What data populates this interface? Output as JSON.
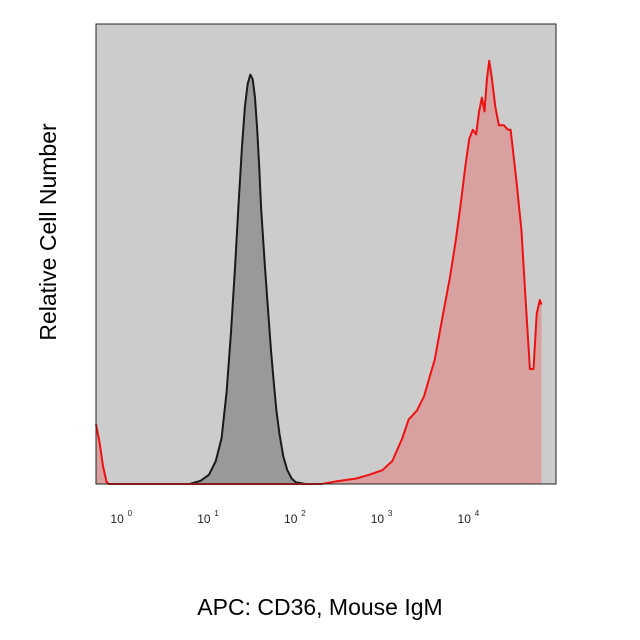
{
  "chart_data": {
    "type": "area",
    "xlabel": "APC: CD36, Mouse IgM",
    "ylabel": "Relative Cell Number",
    "x_scale": "log",
    "xlim": [
      0.5,
      100000
    ],
    "ylim": [
      0,
      100
    ],
    "grid": false,
    "plot_background": "#cccccc",
    "x_ticks": [
      {
        "base": "10",
        "exp": "0",
        "value": 1
      },
      {
        "base": "10",
        "exp": "1",
        "value": 10
      },
      {
        "base": "10",
        "exp": "2",
        "value": 100
      },
      {
        "base": "10",
        "exp": "3",
        "value": 1000
      },
      {
        "base": "10",
        "exp": "4",
        "value": 10000
      }
    ],
    "series": [
      {
        "stroke": "#1a1a1a",
        "fill": "#999999",
        "points": [
          [
            6,
            0
          ],
          [
            8,
            0.7
          ],
          [
            10,
            2
          ],
          [
            12,
            5
          ],
          [
            14,
            10
          ],
          [
            16,
            20
          ],
          [
            18,
            33
          ],
          [
            20,
            47
          ],
          [
            22,
            61
          ],
          [
            24,
            73
          ],
          [
            26,
            82
          ],
          [
            28,
            87
          ],
          [
            30,
            89
          ],
          [
            32,
            88
          ],
          [
            34,
            84
          ],
          [
            36,
            77
          ],
          [
            38,
            69
          ],
          [
            40,
            60
          ],
          [
            44,
            48
          ],
          [
            48,
            38
          ],
          [
            52,
            29
          ],
          [
            56,
            22
          ],
          [
            60,
            16
          ],
          [
            65,
            11
          ],
          [
            72,
            6
          ],
          [
            80,
            3
          ],
          [
            90,
            1.2
          ],
          [
            100,
            0.4
          ],
          [
            130,
            0
          ]
        ]
      },
      {
        "stroke": "#ee1111",
        "fill": "#d9a0a0",
        "points": [
          [
            0.5,
            13
          ],
          [
            0.55,
            9
          ],
          [
            0.6,
            4
          ],
          [
            0.66,
            0.5
          ],
          [
            0.7,
            0
          ],
          [
            200,
            0
          ],
          [
            300,
            0.6
          ],
          [
            500,
            1.2
          ],
          [
            700,
            2
          ],
          [
            1000,
            3
          ],
          [
            1300,
            5
          ],
          [
            1700,
            10
          ],
          [
            2000,
            14
          ],
          [
            2500,
            16
          ],
          [
            3000,
            19
          ],
          [
            4000,
            27
          ],
          [
            5000,
            37
          ],
          [
            6000,
            45
          ],
          [
            7000,
            53
          ],
          [
            8000,
            61
          ],
          [
            9000,
            69
          ],
          [
            10000,
            75
          ],
          [
            11000,
            77
          ],
          [
            12000,
            76
          ],
          [
            13000,
            81
          ],
          [
            14000,
            84
          ],
          [
            15000,
            81
          ],
          [
            16000,
            88
          ],
          [
            17000,
            92
          ],
          [
            18000,
            89
          ],
          [
            20000,
            82
          ],
          [
            22000,
            78
          ],
          [
            25000,
            78
          ],
          [
            28000,
            77
          ],
          [
            30000,
            77
          ],
          [
            35000,
            66
          ],
          [
            40000,
            55
          ],
          [
            45000,
            39
          ],
          [
            50000,
            25
          ],
          [
            55000,
            25
          ],
          [
            60000,
            37
          ],
          [
            65000,
            40
          ],
          [
            68000,
            39
          ]
        ]
      }
    ]
  }
}
